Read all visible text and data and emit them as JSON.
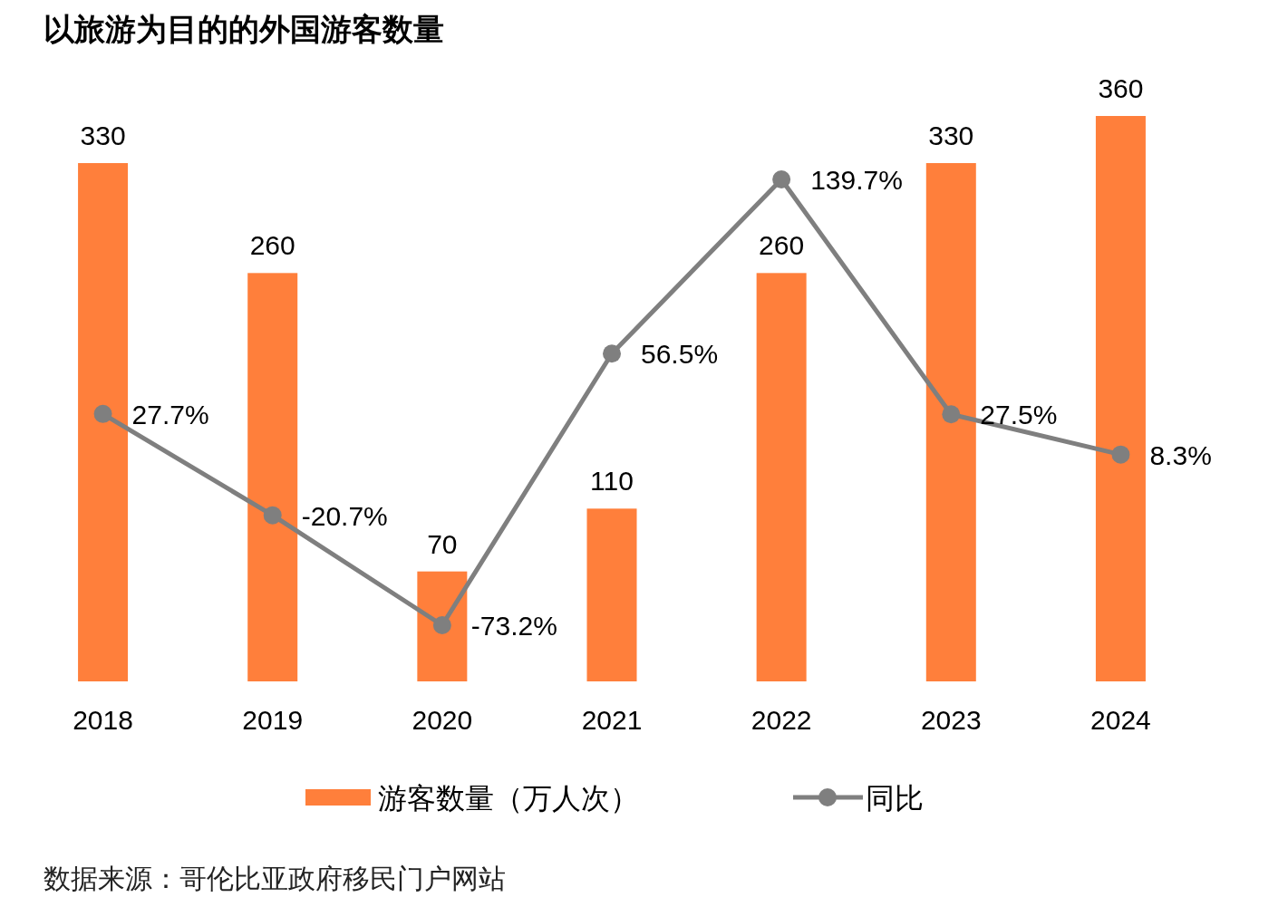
{
  "chart_data": {
    "type": "bar",
    "title": "以旅游为目的的外国游客数量",
    "categories": [
      "2018",
      "2019",
      "2020",
      "2021",
      "2022",
      "2023",
      "2024"
    ],
    "series": [
      {
        "name": "游客数量（万人次）",
        "color": "#ff7f3b",
        "values": [
          330,
          260,
          70,
          110,
          260,
          330,
          360
        ],
        "value_labels": [
          "330",
          "260",
          "70",
          "110",
          "260",
          "330",
          "360"
        ]
      },
      {
        "name": "同比",
        "type": "line",
        "axis": "y2",
        "color": "#7f7f7f",
        "values": [
          27.7,
          -20.7,
          -73.2,
          56.5,
          139.7,
          27.5,
          8.3
        ],
        "value_labels": [
          "27.7%",
          "-20.7%",
          "-73.2%",
          "56.5%",
          "139.7%",
          "27.5%",
          "8.3%"
        ]
      }
    ],
    "marker": "circle",
    "legend": "bottom",
    "annotations": [
      "数据来源：哥伦比亚政府移民门户网站"
    ]
  }
}
